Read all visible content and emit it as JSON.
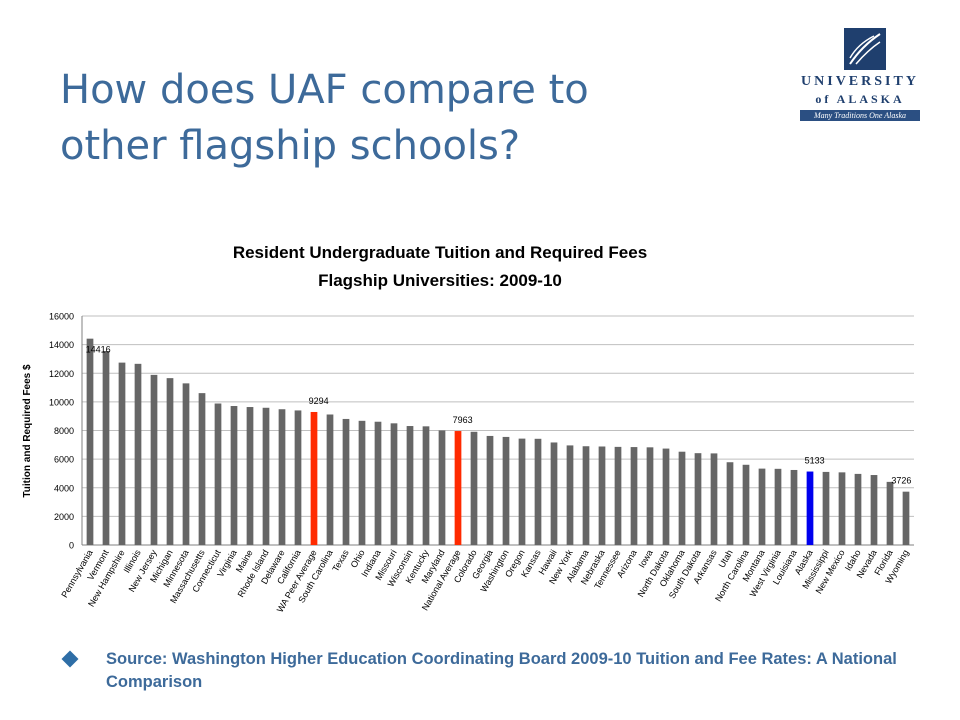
{
  "slide": {
    "title": "How does UAF compare to\nother flagship schools?",
    "source_text": "Source: Washington Higher Education Coordinating Board 2009-10 Tuition and Fee Rates: A National Comparison"
  },
  "logo": {
    "name": "UNIVERSITY",
    "sub": "of ALASKA",
    "tagline": "Many Traditions One Alaska"
  },
  "colors": {
    "title": "#3d6a9a",
    "bar_default": "#666666",
    "bar_highlight_red": "#ff2a00",
    "bar_highlight_blue": "#0000ee",
    "grid": "#bfbfbf"
  },
  "chart_data": {
    "type": "bar",
    "title": "Resident Undergraduate Tuition and Required Fees",
    "subtitle": "Flagship Universities: 2009-10",
    "xlabel": "",
    "ylabel": "Tuition and Required Fees $",
    "ylim": [
      0,
      16000
    ],
    "yticks": [
      0,
      2000,
      4000,
      6000,
      8000,
      10000,
      12000,
      14000,
      16000
    ],
    "grid": true,
    "legend": "none",
    "categories": [
      "Pennsylvania",
      "Vermont",
      "New Hampshire",
      "Illinois",
      "New Jersey",
      "Michigan",
      "Minnesota",
      "Massachusetts",
      "Connecticut",
      "Virginia",
      "Maine",
      "Rhode Island",
      "Delaware",
      "California",
      "WA Peer Average",
      "South Carolina",
      "Texas",
      "Ohio",
      "Indiana",
      "Missouri",
      "Wisconsin",
      "Kentucky",
      "Maryland",
      "National Average",
      "Colorado",
      "Georgia",
      "Washington",
      "Oregon",
      "Kansas",
      "Hawaii",
      "New York",
      "Alabama",
      "Nebraska",
      "Tennessee",
      "Arizona",
      "Iowa",
      "North Dakota",
      "Oklahoma",
      "South Dakota",
      "Arkansas",
      "Utah",
      "North Carolina",
      "Montana",
      "West Virginia",
      "Louisiana",
      "Alaska",
      "Mississippi",
      "New Mexico",
      "Idaho",
      "Nevada",
      "Florida",
      "Wyoming"
    ],
    "values": [
      14416,
      13554,
      12743,
      12658,
      11886,
      11659,
      11293,
      10611,
      9886,
      9711,
      9640,
      9588,
      9486,
      9402,
      9294,
      9118,
      8807,
      8676,
      8613,
      8501,
      8312,
      8291,
      8005,
      7963,
      7910,
      7620,
      7551,
      7433,
      7420,
      7164,
      6958,
      6900,
      6882,
      6856,
      6842,
      6824,
      6737,
      6518,
      6416,
      6400,
      5783,
      5605,
      5337,
      5322,
      5242,
      5133,
      5106,
      5076,
      4968,
      4889,
      4410,
      3726
    ],
    "highlight": {
      "WA Peer Average": "red",
      "National Average": "red",
      "Alaska": "blue"
    },
    "data_labels": [
      {
        "category": "Pennsylvania",
        "text": "14416"
      },
      {
        "category": "WA Peer Average",
        "text": "9294"
      },
      {
        "category": "National Average",
        "text": "7963"
      },
      {
        "category": "Alaska",
        "text": "5133"
      },
      {
        "category": "Wyoming",
        "text": "3726"
      }
    ]
  }
}
